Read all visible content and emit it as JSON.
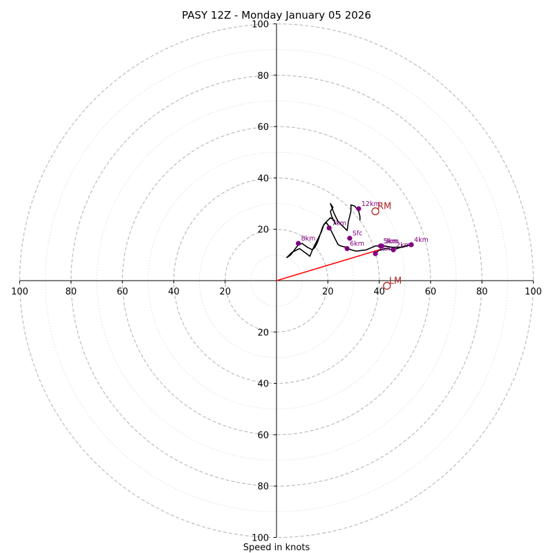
{
  "chart_data": {
    "type": "hodograph",
    "title": "PASY 12Z - Monday January 05 2026",
    "xlabel": "Speed in knots",
    "range": [
      -100,
      100
    ],
    "ring_major": [
      20,
      40,
      60,
      80,
      100
    ],
    "ring_minor": [
      10,
      30,
      50,
      70,
      90
    ],
    "tick_values": [
      20,
      40,
      60,
      80,
      100
    ],
    "profile": [
      [
        38.5,
        10.5
      ],
      [
        40,
        12
      ],
      [
        43,
        12.5
      ],
      [
        45.5,
        12
      ],
      [
        50,
        13.5
      ],
      [
        52.5,
        14
      ],
      [
        49,
        13
      ],
      [
        45,
        13
      ],
      [
        42,
        13.5
      ],
      [
        38.5,
        13.5
      ],
      [
        35,
        12
      ],
      [
        31,
        11.5
      ],
      [
        29,
        12
      ],
      [
        27,
        13
      ],
      [
        25,
        13.5
      ],
      [
        24,
        14
      ],
      [
        23,
        16
      ],
      [
        22,
        18
      ],
      [
        21,
        20
      ],
      [
        20.5,
        21
      ],
      [
        19.5,
        22.5
      ],
      [
        18.5,
        22
      ],
      [
        17.5,
        19
      ],
      [
        16.5,
        17
      ],
      [
        15,
        14
      ],
      [
        14,
        12
      ],
      [
        13,
        9.5
      ],
      [
        11,
        11
      ],
      [
        9,
        12.5
      ],
      [
        8,
        12
      ],
      [
        6,
        11
      ],
      [
        4,
        9
      ],
      [
        5.5,
        10
      ],
      [
        7,
        12
      ],
      [
        8.5,
        14
      ],
      [
        10,
        14.5
      ],
      [
        12,
        13
      ],
      [
        14,
        12
      ],
      [
        15,
        13
      ],
      [
        16,
        15
      ],
      [
        17,
        18
      ],
      [
        18,
        21
      ],
      [
        19,
        22.5
      ],
      [
        20,
        23.5
      ],
      [
        21,
        24.5
      ],
      [
        22.5,
        23.5
      ],
      [
        23,
        22
      ],
      [
        22.5,
        23
      ],
      [
        21.5,
        25
      ],
      [
        21,
        27
      ],
      [
        22,
        28.5
      ],
      [
        21,
        30
      ],
      [
        22.5,
        26
      ],
      [
        24,
        23
      ],
      [
        26,
        21
      ],
      [
        27.5,
        19.5
      ],
      [
        28,
        23
      ],
      [
        29,
        27
      ],
      [
        29,
        29.5
      ],
      [
        30.5,
        29
      ],
      [
        32,
        27
      ],
      [
        32.5,
        25
      ],
      [
        32.5,
        23.5
      ]
    ],
    "height_points": [
      {
        "label": "Sfc",
        "u": 28.5,
        "v": 16.5
      },
      {
        "label": "1km",
        "u": 38.5,
        "v": 10.5
      },
      {
        "label": "2km",
        "u": 45.5,
        "v": 12
      },
      {
        "label": "3km",
        "u": 41,
        "v": 13.5
      },
      {
        "label": "4km",
        "u": 52.5,
        "v": 14
      },
      {
        "label": "5km",
        "u": 40.5,
        "v": 13.5
      },
      {
        "label": "6km",
        "u": 27.5,
        "v": 12.5
      },
      {
        "label": "7km",
        "u": 20.5,
        "v": 20.5
      },
      {
        "label": "8km",
        "u": 8.5,
        "v": 14.5
      },
      {
        "label": "12km",
        "u": 32,
        "v": 28
      }
    ],
    "storm_motion": [
      {
        "label": "RM",
        "u": 38.5,
        "v": 27
      },
      {
        "label": "LM",
        "u": 43,
        "v": -2
      }
    ],
    "shear_vector": {
      "from": [
        0,
        0
      ],
      "to": [
        40,
        12
      ]
    },
    "colors": {
      "profile": "#000000",
      "height_points": "#800080",
      "storm_motion": "#b22222",
      "shear_vector": "#ff0000",
      "ring_major": "#bbbbbb",
      "ring_minor": "#cccccc",
      "axis": "#000000"
    }
  }
}
